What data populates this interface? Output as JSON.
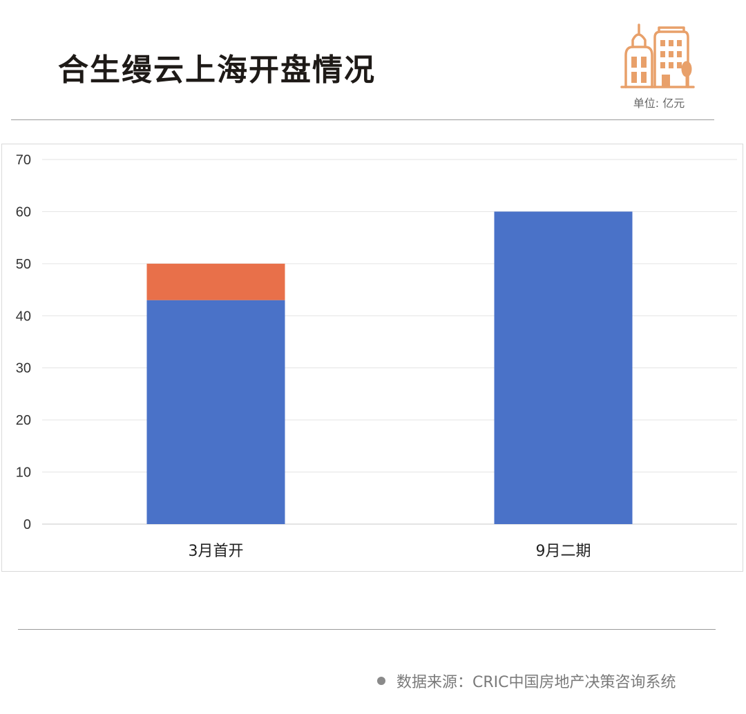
{
  "header": {
    "title": "合生缦云上海开盘情况",
    "unit": "单位: 亿元",
    "icon": "building-icon",
    "icon_color": "#E8A06A"
  },
  "footer": {
    "source": "数据来源：CRIC中国房地产决策咨询系统"
  },
  "chart_data": {
    "type": "bar",
    "stacked": true,
    "categories": [
      "3月首开",
      "9月二期"
    ],
    "series": [
      {
        "values": [
          43,
          60
        ],
        "color": "#4A72C8"
      },
      {
        "values": [
          7,
          0
        ],
        "color": "#E8704A"
      }
    ],
    "ylim": [
      0,
      70
    ],
    "yticks": [
      0,
      10,
      20,
      30,
      40,
      50,
      60,
      70
    ],
    "grid": true,
    "legend": "none"
  }
}
